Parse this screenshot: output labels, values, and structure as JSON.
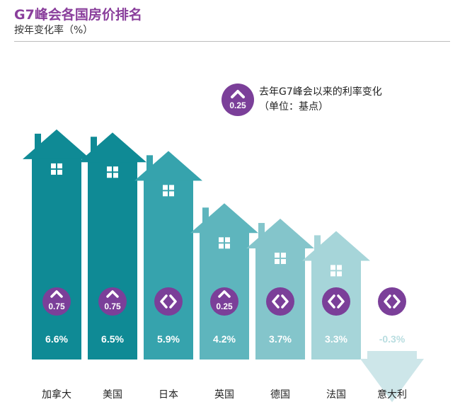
{
  "title": "G7峰会各国房价排名",
  "subtitle": "按年变化率（%）",
  "legend": {
    "badge_value": "0.25",
    "line1": "去年G7峰会以来的利率变化",
    "line2": "（单位：基点）"
  },
  "colors": {
    "purple": "#7b3f99",
    "title_purple": "#8a3f9c",
    "house_shades": [
      "#0f8a95",
      "#0f8a95",
      "#36a3ad",
      "#5eb5bd",
      "#84c5cb",
      "#a6d5d9",
      "#cde6e9"
    ]
  },
  "chart_data": {
    "type": "bar",
    "title": "G7峰会各国房价排名",
    "subtitle": "按年变化率（%）",
    "categories": [
      "加拿大",
      "美国",
      "日本",
      "英国",
      "德国",
      "法国",
      "意大利"
    ],
    "values": [
      6.6,
      6.5,
      5.9,
      4.2,
      3.7,
      3.3,
      -0.3
    ],
    "value_labels": [
      "6.6%",
      "6.5%",
      "5.9%",
      "4.2%",
      "3.7%",
      "3.3%",
      "-0.3%"
    ],
    "rate_change": {
      "name": "去年G7峰会以来的利率变化（单位：基点）",
      "values": [
        0.75,
        0.75,
        0,
        0.25,
        0,
        0,
        0
      ],
      "direction": [
        "up",
        "up",
        "unchanged",
        "up",
        "unchanged",
        "unchanged",
        "unchanged"
      ],
      "labels": [
        "0.75",
        "0.75",
        "",
        "0.25",
        "",
        "",
        ""
      ]
    },
    "grid": false
  }
}
